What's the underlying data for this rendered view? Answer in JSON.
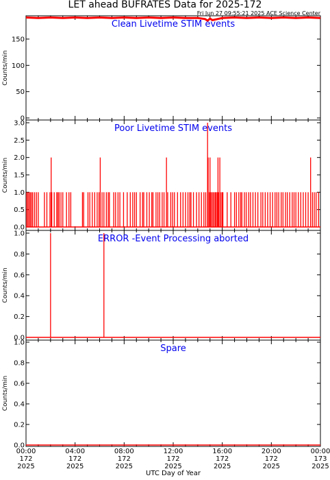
{
  "header": {
    "title": "LET ahead BUFRATES Data for 2025-172",
    "timestamp": "Fri Jun 27 09:55:21 2025 ACE Science Center"
  },
  "x_axis": {
    "label": "UTC Day of Year",
    "tick_times": [
      "00:00",
      "04:00",
      "08:00",
      "12:00",
      "16:00",
      "20:00",
      "00:00"
    ],
    "tick_days": [
      "172",
      "172",
      "172",
      "172",
      "172",
      "172",
      "173"
    ],
    "tick_years": [
      "2025",
      "2025",
      "2025",
      "2025",
      "2025",
      "2025",
      "2025"
    ]
  },
  "colors": {
    "data": "#ff0000",
    "panel_title": "#0000ee",
    "axes": "#000000"
  },
  "chart_data": [
    {
      "type": "line",
      "title": "Clean Livetime STIM events",
      "ylabel": "Counts/min",
      "ylim": [
        0,
        193
      ],
      "yticks": [
        0,
        50,
        100,
        150
      ],
      "ytick_labels": [
        "0",
        "50",
        "100",
        "150"
      ],
      "xlim_hours": [
        0,
        24
      ],
      "series": [
        {
          "x_hours": [
            0,
            1,
            2,
            3,
            4,
            5,
            6,
            7,
            8,
            9,
            10,
            11,
            12,
            13,
            14,
            14.6,
            14.8,
            15,
            15.2,
            15.6,
            16,
            17,
            18,
            19,
            20,
            21,
            22,
            23,
            24
          ],
          "values": [
            191,
            190,
            191,
            190,
            191,
            190,
            191,
            190,
            191,
            190,
            191,
            190,
            191,
            190,
            190,
            188,
            185,
            189,
            186,
            188,
            190,
            191,
            190,
            191,
            190,
            191,
            190,
            191,
            190
          ]
        }
      ]
    },
    {
      "type": "line",
      "title": "Poor Livetime STIM events",
      "ylabel": "Counts/min",
      "ylim": [
        0,
        3
      ],
      "yticks": [
        0,
        0.5,
        1,
        1.5,
        2,
        2.5,
        3
      ],
      "ytick_labels": [
        "0.0",
        "0.5",
        "1.0",
        "1.5",
        "2.0",
        "2.5",
        "3.0"
      ],
      "xlim_hours": [
        0,
        24
      ],
      "series": [
        {
          "spike_hours": [
            0.05,
            0.15,
            0.25,
            0.35,
            0.45,
            0.55,
            0.7,
            0.85,
            1.0,
            1.5,
            1.7,
            1.95,
            2.05,
            2.1,
            2.3,
            2.5,
            2.6,
            2.7,
            2.85,
            3.0,
            3.3,
            3.5,
            3.65,
            4.6,
            4.7,
            5.05,
            5.2,
            5.4,
            5.6,
            5.8,
            5.95,
            6.05,
            6.2,
            6.35,
            6.55,
            6.7,
            6.8,
            7.15,
            7.3,
            7.5,
            7.65,
            7.95,
            8.25,
            8.5,
            8.7,
            8.85,
            9.0,
            9.3,
            9.5,
            9.6,
            9.85,
            10.05,
            10.25,
            10.35,
            10.6,
            10.75,
            10.9,
            11.1,
            11.25,
            11.45,
            11.55,
            11.8,
            11.95,
            12.1,
            12.35,
            12.6,
            12.8,
            13.0,
            13.2,
            13.35,
            13.45,
            13.65,
            13.9,
            14.1,
            14.3,
            14.5,
            14.65,
            14.8,
            14.85,
            14.95,
            15.0,
            15.05,
            15.15,
            15.25,
            15.35,
            15.45,
            15.5,
            15.6,
            15.65,
            15.7,
            15.8,
            15.9,
            16.0,
            16.05,
            16.4,
            16.7,
            17.0,
            17.15,
            17.35,
            17.5,
            17.6,
            17.8,
            17.95,
            18.15,
            18.3,
            18.5,
            18.7,
            18.9,
            19.15,
            19.3,
            19.5,
            19.7,
            19.9,
            20.1,
            20.3,
            20.45,
            20.6,
            20.8,
            20.95,
            21.15,
            21.3,
            21.5,
            21.7,
            21.85,
            22.0,
            22.2,
            22.4,
            22.6,
            22.8,
            23.0,
            23.2,
            23.35,
            23.5,
            23.65,
            23.85
          ],
          "spike_values": [
            1,
            1,
            1,
            1,
            1,
            1,
            1,
            1,
            1,
            1,
            1,
            1,
            2,
            1,
            1,
            1,
            1,
            1,
            1,
            1,
            1,
            1,
            1,
            1,
            1,
            1,
            1,
            1,
            1,
            1,
            1,
            2,
            1,
            1,
            1,
            1,
            1,
            1,
            1,
            1,
            1,
            1,
            1,
            1,
            1,
            1,
            1,
            1,
            1,
            1,
            1,
            1,
            1,
            1,
            1,
            1,
            1,
            1,
            1,
            2,
            1,
            1,
            1,
            1,
            1,
            1,
            1,
            1,
            1,
            1,
            1,
            1,
            1,
            1,
            1,
            1,
            1,
            3,
            2,
            1,
            2,
            1,
            1,
            1,
            1,
            1,
            1,
            1,
            2,
            1,
            2,
            1,
            1,
            1,
            1,
            1,
            1,
            1,
            1,
            1,
            1,
            1,
            1,
            1,
            1,
            1,
            1,
            1,
            1,
            1,
            1,
            1,
            1,
            1,
            1,
            1,
            1,
            1,
            1,
            1,
            1,
            1,
            1,
            1,
            1,
            1,
            1,
            1,
            1,
            1,
            2,
            1,
            1,
            1,
            1
          ],
          "baseline": 0
        }
      ]
    },
    {
      "type": "line",
      "title": "ERROR -Event Processing aborted",
      "ylabel": "Counts/min",
      "ylim": [
        0,
        1
      ],
      "yticks": [
        0,
        0.2,
        0.4,
        0.6,
        0.8,
        1.0
      ],
      "ytick_labels": [
        "0.0",
        "0.2",
        "0.4",
        "0.6",
        "0.8",
        "1.0"
      ],
      "xlim_hours": [
        0,
        24
      ],
      "series": [
        {
          "spike_hours": [
            2.0,
            6.35
          ],
          "spike_values": [
            1,
            1
          ],
          "baseline": 0
        }
      ]
    },
    {
      "type": "line",
      "title": "Spare",
      "ylabel": "Counts/min",
      "ylim": [
        0,
        1
      ],
      "yticks": [
        0,
        0.2,
        0.4,
        0.6,
        0.8,
        1.0
      ],
      "ytick_labels": [
        "0.0",
        "0.2",
        "0.4",
        "0.6",
        "0.8",
        "1.0"
      ],
      "xlim_hours": [
        0,
        24
      ],
      "series": [
        {
          "spike_hours": [],
          "spike_values": [],
          "baseline": 0
        }
      ]
    }
  ]
}
